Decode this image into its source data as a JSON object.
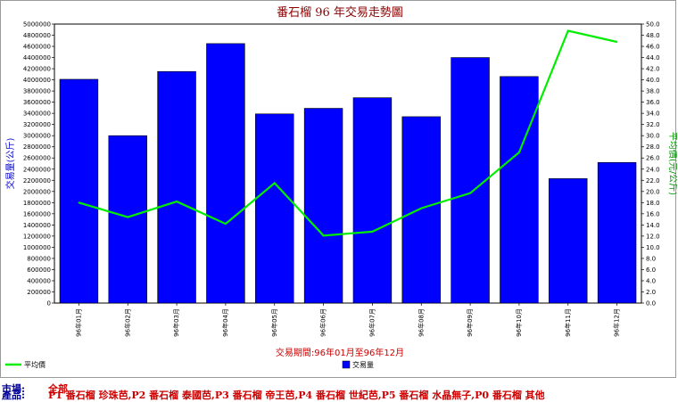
{
  "chart_data": {
    "type": "bar",
    "title": "番石榴 96 年交易走勢圖",
    "xlabel": "交易期間:96年01月至96年12月",
    "ylabel_left": "交易量(公斤)",
    "ylabel_right": "平均價(元/公斤)",
    "categories": [
      "96年01月",
      "96年02月",
      "96年03月",
      "96年04月",
      "96年05月",
      "96年06月",
      "96年07月",
      "96年08月",
      "96年09月",
      "96年10月",
      "96年11月",
      "96年12月"
    ],
    "series": [
      {
        "name": "交易量",
        "type": "bar",
        "axis": "left",
        "color": "#0000ff",
        "values": [
          4010000,
          3000000,
          4150000,
          4650000,
          3390000,
          3490000,
          3680000,
          3340000,
          4400000,
          4060000,
          2230000,
          2520000
        ]
      },
      {
        "name": "平均價",
        "type": "line",
        "axis": "right",
        "color": "#00ee00",
        "values": [
          18.0,
          15.4,
          18.2,
          14.2,
          21.5,
          12.1,
          12.8,
          17.0,
          19.7,
          27.0,
          48.8,
          46.8
        ]
      }
    ],
    "ylim_left": [
      0,
      5000000
    ],
    "ytick_step_left": 200000,
    "ylim_right": [
      0,
      50
    ],
    "ytick_step_right": 2,
    "legend_placement": "bottom",
    "grid": false
  },
  "footer": {
    "market_label": "市場:",
    "market_value": "全部",
    "product_label": "產品:",
    "product_value": "P1 番石榴 珍珠芭,P2 番石榴 泰國芭,P3 番石榴 帝王芭,P4 番石榴 世紀芭,P5 番石榴 水晶無子,P0 番石榴 其他"
  }
}
